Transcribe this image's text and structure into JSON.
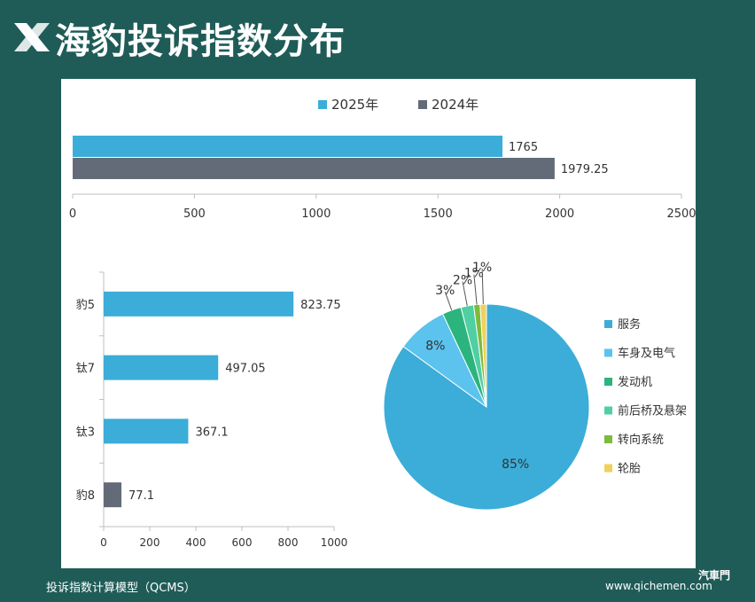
{
  "title": "海豹投诉指数分布",
  "footer": {
    "model": "投诉指数计算模型（QCMS）",
    "site": "www.qichemen.com",
    "watermark": "汽車門"
  },
  "colors": {
    "background": "#1f5c58",
    "y2025": "#3badd8",
    "y2024": "#636b78"
  },
  "chart_data": [
    {
      "type": "bar",
      "orientation": "horizontal",
      "series": [
        {
          "name": "2025年",
          "values": [
            1765
          ],
          "labels": [
            "1765"
          ],
          "color": "#3badd8"
        },
        {
          "name": "2024年",
          "values": [
            1979.25
          ],
          "labels": [
            "1979.25"
          ],
          "color": "#636b78"
        }
      ],
      "xlim": [
        0,
        2500
      ],
      "xticks": [
        "0",
        "500",
        "1000",
        "1500",
        "2000",
        "2500"
      ],
      "legend": "top-center"
    },
    {
      "type": "bar",
      "orientation": "horizontal",
      "categories": [
        "豹5",
        "钛7",
        "钛3",
        "豹8"
      ],
      "values": [
        823.75,
        497.05,
        367.1,
        77.1
      ],
      "labels": [
        "823.75",
        "497.05",
        "367.1",
        "77.1"
      ],
      "colors": [
        "#3badd8",
        "#3badd8",
        "#3badd8",
        "#636b78"
      ],
      "xlim": [
        0,
        1000
      ],
      "xticks": [
        "0",
        "200",
        "400",
        "600",
        "800",
        "1000"
      ]
    },
    {
      "type": "pie",
      "slices": [
        {
          "name": "服务",
          "value": 85,
          "label": "85%",
          "color": "#3badd8"
        },
        {
          "name": "车身及电气",
          "value": 8,
          "label": "8%",
          "color": "#5bc3ee"
        },
        {
          "name": "发动机",
          "value": 3,
          "label": "3%",
          "color": "#2cb47e"
        },
        {
          "name": "前后桥及悬架",
          "value": 2,
          "label": "2%",
          "color": "#4fcfa2"
        },
        {
          "name": "转向系统",
          "value": 1,
          "label": "1%",
          "color": "#7dbb3c"
        },
        {
          "name": "轮胎",
          "value": 1,
          "label": "1%",
          "color": "#f0d15a"
        }
      ],
      "legend": "right"
    }
  ]
}
